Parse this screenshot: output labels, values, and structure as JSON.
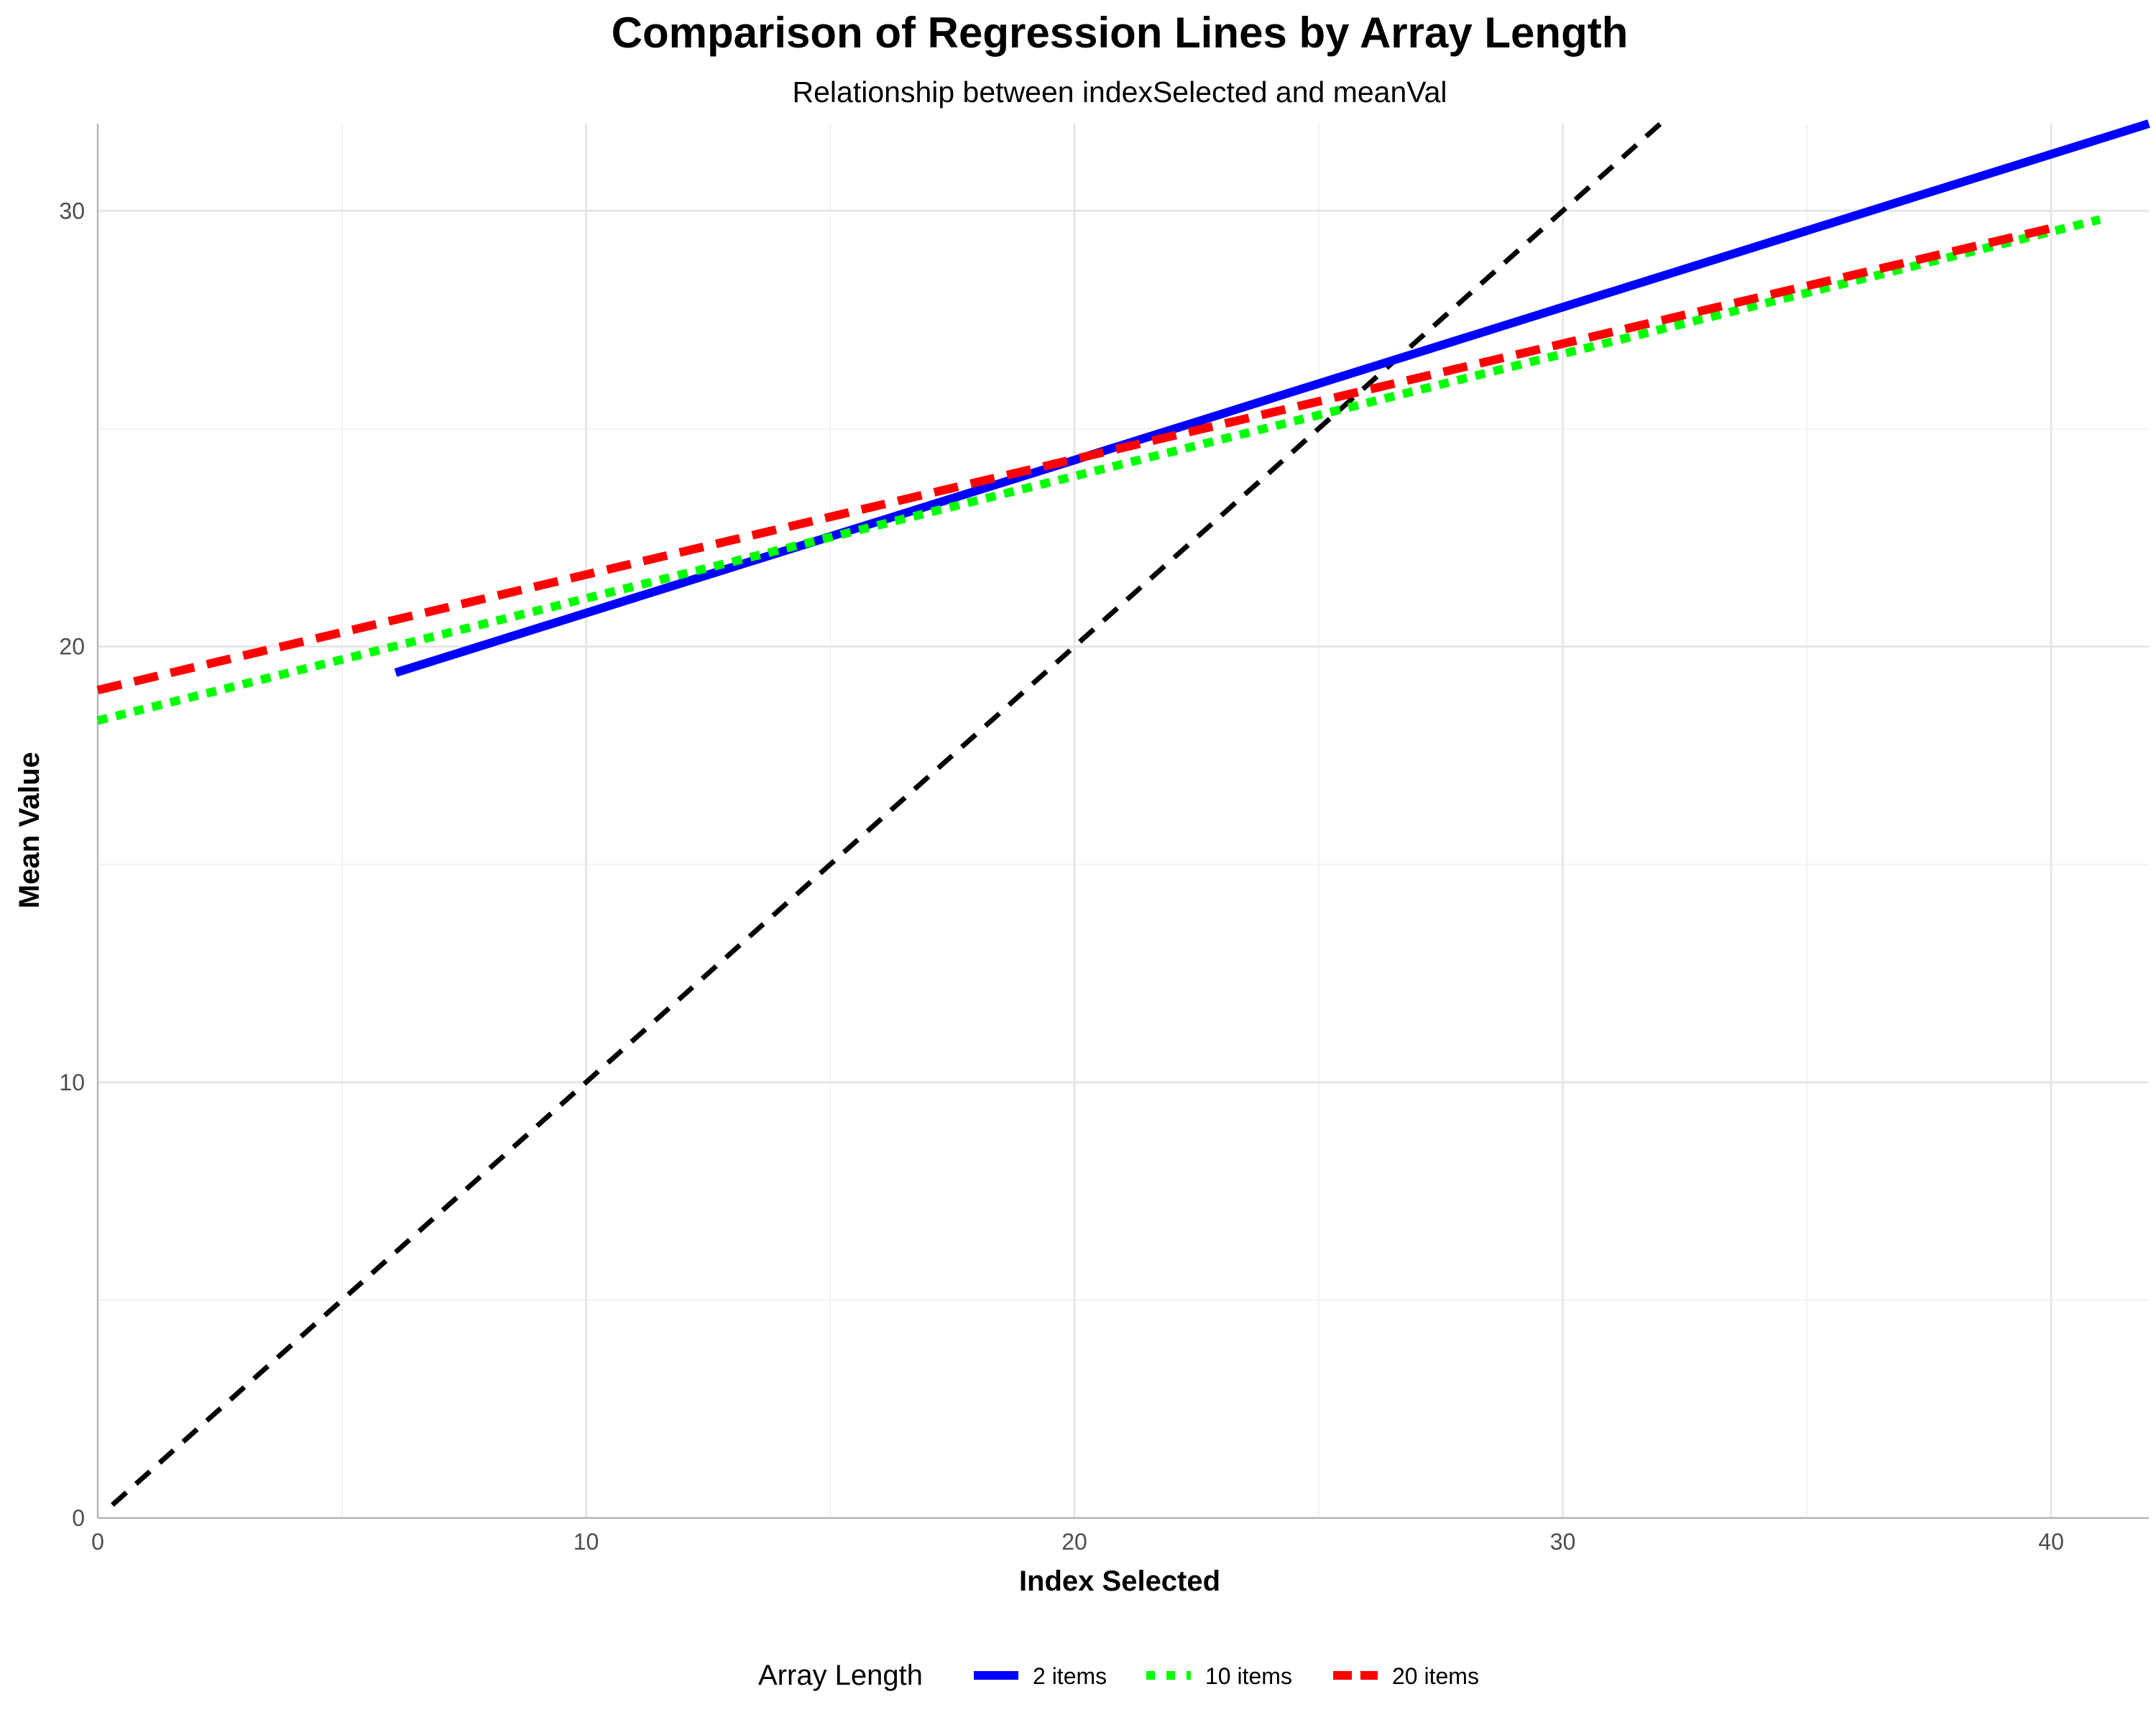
{
  "chart_data": {
    "type": "line",
    "title": "Comparison of Regression Lines by Array Length",
    "subtitle": "Relationship between indexSelected and meanVal",
    "xlabel": "Index Selected",
    "ylabel": "Mean Value",
    "xlim": [
      0,
      42
    ],
    "ylim": [
      0,
      32
    ],
    "x_ticks": [
      0,
      10,
      20,
      30,
      40
    ],
    "y_ticks": [
      0,
      10,
      20,
      30
    ],
    "grid": true,
    "legend": {
      "title": "Array Length",
      "position": "bottom"
    },
    "series": [
      {
        "name": "2 items",
        "color": "#0000ff",
        "dash": "solid",
        "x": [
          6.1,
          42
        ],
        "y": [
          19.4,
          32.0
        ]
      },
      {
        "name": "10 items",
        "color": "#00ff00",
        "dash": "dotted",
        "x": [
          0,
          41
        ],
        "y": [
          18.3,
          29.8
        ]
      },
      {
        "name": "20 items",
        "color": "#ff0000",
        "dash": "dashed",
        "x": [
          0,
          40
        ],
        "y": [
          19.0,
          29.6
        ]
      }
    ],
    "reference_line": {
      "color": "#000000",
      "dash": "dashed",
      "x": [
        0.3,
        32
      ],
      "y": [
        0.3,
        32
      ]
    }
  }
}
